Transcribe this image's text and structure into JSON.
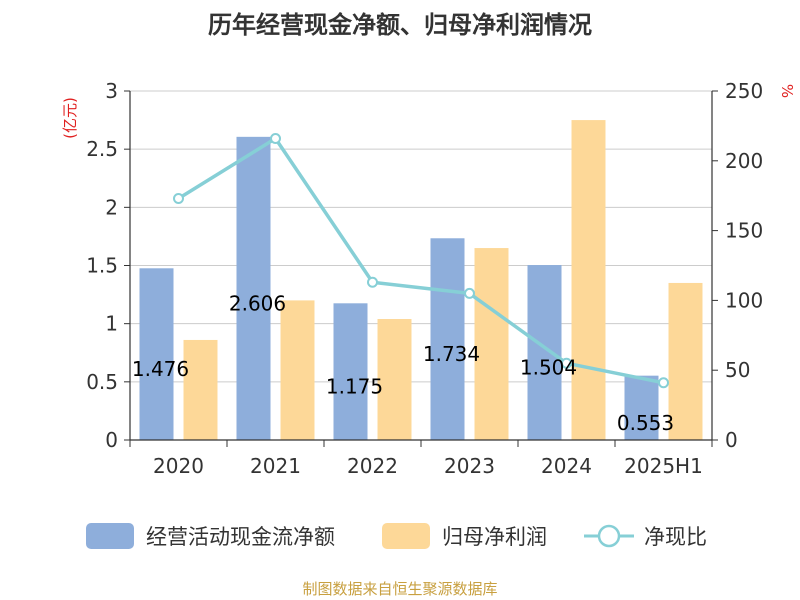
{
  "chart_data": {
    "type": "bar",
    "title": "历年经营现金净额、归母净利润情况",
    "categories": [
      "2020",
      "2021",
      "2022",
      "2023",
      "2024",
      "2025H1"
    ],
    "left_axis": {
      "unit_label": "(亿元)",
      "range": [
        0,
        3
      ],
      "ticks": [
        "0",
        "0.5",
        "1",
        "1.5",
        "2",
        "2.5",
        "3"
      ]
    },
    "right_axis": {
      "unit_label": "%",
      "range": [
        0,
        250
      ],
      "ticks": [
        "0",
        "50",
        "100",
        "150",
        "200",
        "250"
      ]
    },
    "series": [
      {
        "name": "经营活动现金流净额",
        "type": "bar",
        "axis": "left",
        "color": "#8eaedb",
        "values": [
          1.476,
          2.606,
          1.175,
          1.734,
          1.504,
          0.553
        ],
        "labels": [
          "1.476",
          "2.606",
          "1.175",
          "1.734",
          "1.504",
          "0.553"
        ]
      },
      {
        "name": "归母净利润",
        "type": "bar",
        "axis": "left",
        "color": "#fdd898",
        "values": [
          0.86,
          1.2,
          1.04,
          1.65,
          2.75,
          1.35
        ]
      },
      {
        "name": "净现比",
        "type": "line",
        "axis": "right",
        "color": "#86cfd6",
        "values": [
          173,
          216,
          113,
          105,
          55,
          41
        ]
      }
    ],
    "grid": true,
    "legend_position": "bottom"
  },
  "source_text": "制图数据来自恒生聚源数据库"
}
